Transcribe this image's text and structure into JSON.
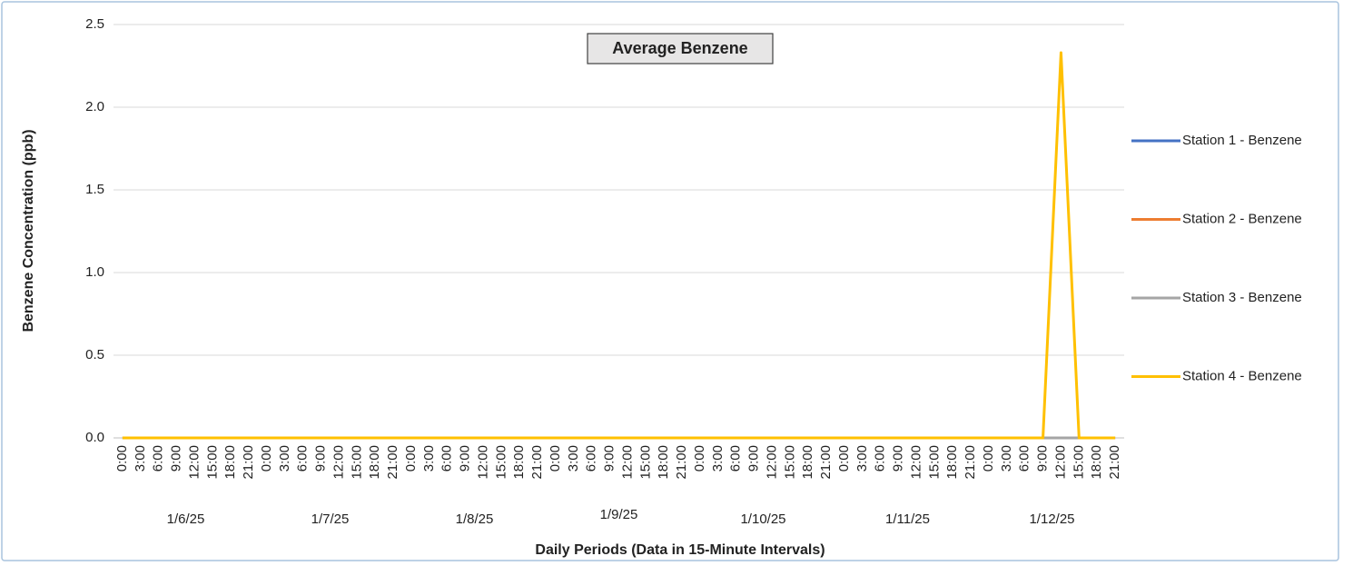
{
  "chart_data": {
    "type": "line",
    "title": "Average Benzene",
    "y_label": "Benzene Concentration (ppb)",
    "x_label": "Daily Periods (Data in 15-Minute Intervals)",
    "categories": [
      "0:00",
      "3:00",
      "6:00",
      "9:00",
      "12:00",
      "15:00",
      "18:00",
      "21:00",
      "0:00",
      "3:00",
      "6:00",
      "9:00",
      "12:00",
      "15:00",
      "18:00",
      "21:00",
      "0:00",
      "3:00",
      "6:00",
      "9:00",
      "12:00",
      "15:00",
      "18:00",
      "21:00",
      "0:00",
      "3:00",
      "6:00",
      "9:00",
      "12:00",
      "15:00",
      "18:00",
      "21:00",
      "0:00",
      "3:00",
      "6:00",
      "9:00",
      "12:00",
      "15:00",
      "18:00",
      "21:00",
      "0:00",
      "3:00",
      "6:00",
      "9:00",
      "12:00",
      "15:00",
      "18:00",
      "21:00",
      "0:00",
      "3:00",
      "6:00",
      "9:00",
      "12:00",
      "15:00",
      "18:00",
      "21:00"
    ],
    "day_labels": [
      "1/6/25",
      "1/7/25",
      "1/8/25",
      "1/9/25",
      "1/10/25",
      "1/11/25",
      "1/12/25"
    ],
    "series": [
      {
        "name": "Station 1 - Benzene",
        "color": "#4472c4",
        "values": [
          0,
          0,
          0,
          0,
          0,
          0,
          0,
          0,
          0,
          0,
          0,
          0,
          0,
          0,
          0,
          0,
          0,
          0,
          0,
          0,
          0,
          0,
          0,
          0,
          0,
          0,
          0,
          0,
          0,
          0,
          0,
          0,
          0,
          0,
          0,
          0,
          0,
          0,
          0,
          0,
          0,
          0,
          0,
          0,
          0,
          0,
          0,
          0,
          0,
          0,
          0,
          0,
          0,
          0,
          0,
          0
        ]
      },
      {
        "name": "Station 2 - Benzene",
        "color": "#ed7d31",
        "values": [
          0,
          0,
          0,
          0,
          0,
          0,
          0,
          0,
          0,
          0,
          0,
          0,
          0,
          0,
          0,
          0,
          0,
          0,
          0,
          0,
          0,
          0,
          0,
          0,
          0,
          0,
          0,
          0,
          0,
          0,
          0,
          0,
          0,
          0,
          0,
          0,
          0,
          0,
          0,
          0,
          0,
          0,
          0,
          0,
          0,
          0,
          0,
          0,
          0,
          0,
          0,
          0,
          0,
          0,
          0,
          0
        ]
      },
      {
        "name": "Station 3 - Benzene",
        "color": "#a5a5a5",
        "values": [
          0,
          0,
          0,
          0,
          0,
          0,
          0,
          0,
          0,
          0,
          0,
          0,
          0,
          0,
          0,
          0,
          0,
          0,
          0,
          0,
          0,
          0,
          0,
          0,
          0,
          0,
          0,
          0,
          0,
          0,
          0,
          0,
          0,
          0,
          0,
          0,
          0,
          0,
          0,
          0,
          0,
          0,
          0,
          0,
          0,
          0,
          0,
          0,
          0,
          0,
          0,
          0,
          0,
          0,
          0,
          0
        ]
      },
      {
        "name": "Station 4 - Benzene",
        "color": "#ffc000",
        "values": [
          0,
          0,
          0,
          0,
          0,
          0,
          0,
          0,
          0,
          0,
          0,
          0,
          0,
          0,
          0,
          0,
          0,
          0,
          0,
          0,
          0,
          0,
          0,
          0,
          0,
          0,
          0,
          0,
          0,
          0,
          0,
          0,
          0,
          0,
          0,
          0,
          0,
          0,
          0,
          0,
          0,
          0,
          0,
          0,
          0,
          0,
          0,
          0,
          0,
          0,
          0,
          0,
          2.33,
          0,
          0,
          0
        ]
      }
    ],
    "ylim": [
      0,
      2.5
    ],
    "yticks": [
      {
        "value": 0,
        "label": "0.0"
      },
      0.5,
      {
        "value": 1,
        "label": "1.0"
      },
      1.5,
      {
        "value": 2,
        "label": "2.0"
      },
      2.5
    ],
    "grid": true,
    "legend": "right"
  }
}
